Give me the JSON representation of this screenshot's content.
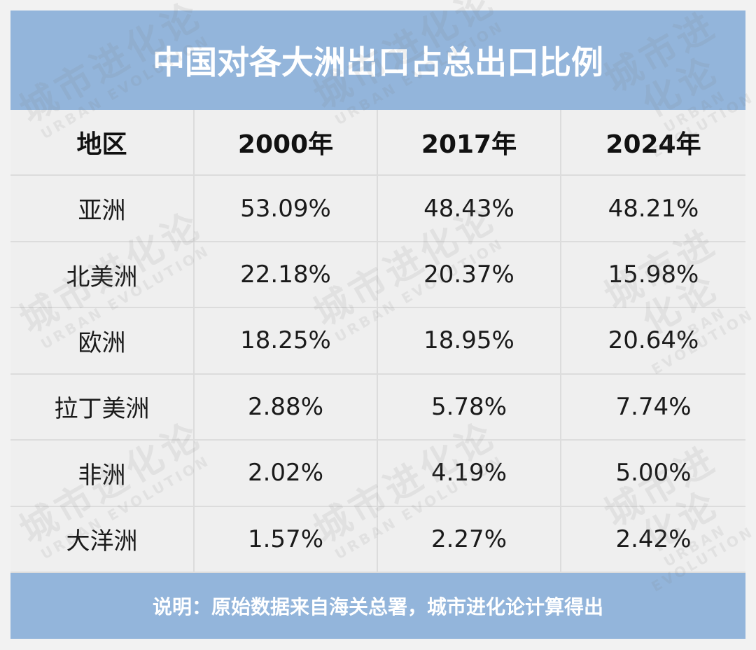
{
  "header": {
    "title": "中国对各大洲出口占总出口比例"
  },
  "table": {
    "columns": [
      "地区",
      "2000年",
      "2017年",
      "2024年"
    ],
    "rows": [
      [
        "亚洲",
        "53.09%",
        "48.43%",
        "48.21%"
      ],
      [
        "北美洲",
        "22.18%",
        "20.37%",
        "15.98%"
      ],
      [
        "欧洲",
        "18.25%",
        "18.95%",
        "20.64%"
      ],
      [
        "拉丁美洲",
        "2.88%",
        "5.78%",
        "7.74%"
      ],
      [
        "非洲",
        "2.02%",
        "4.19%",
        "5.00%"
      ],
      [
        "大洋洲",
        "1.57%",
        "2.27%",
        "2.42%"
      ]
    ]
  },
  "footer": {
    "note": "说明：原始数据来自海关总署，城市进化论计算得出"
  },
  "watermark": {
    "text": "城市进化论",
    "subtext": "URBAN EVOLUTION"
  }
}
